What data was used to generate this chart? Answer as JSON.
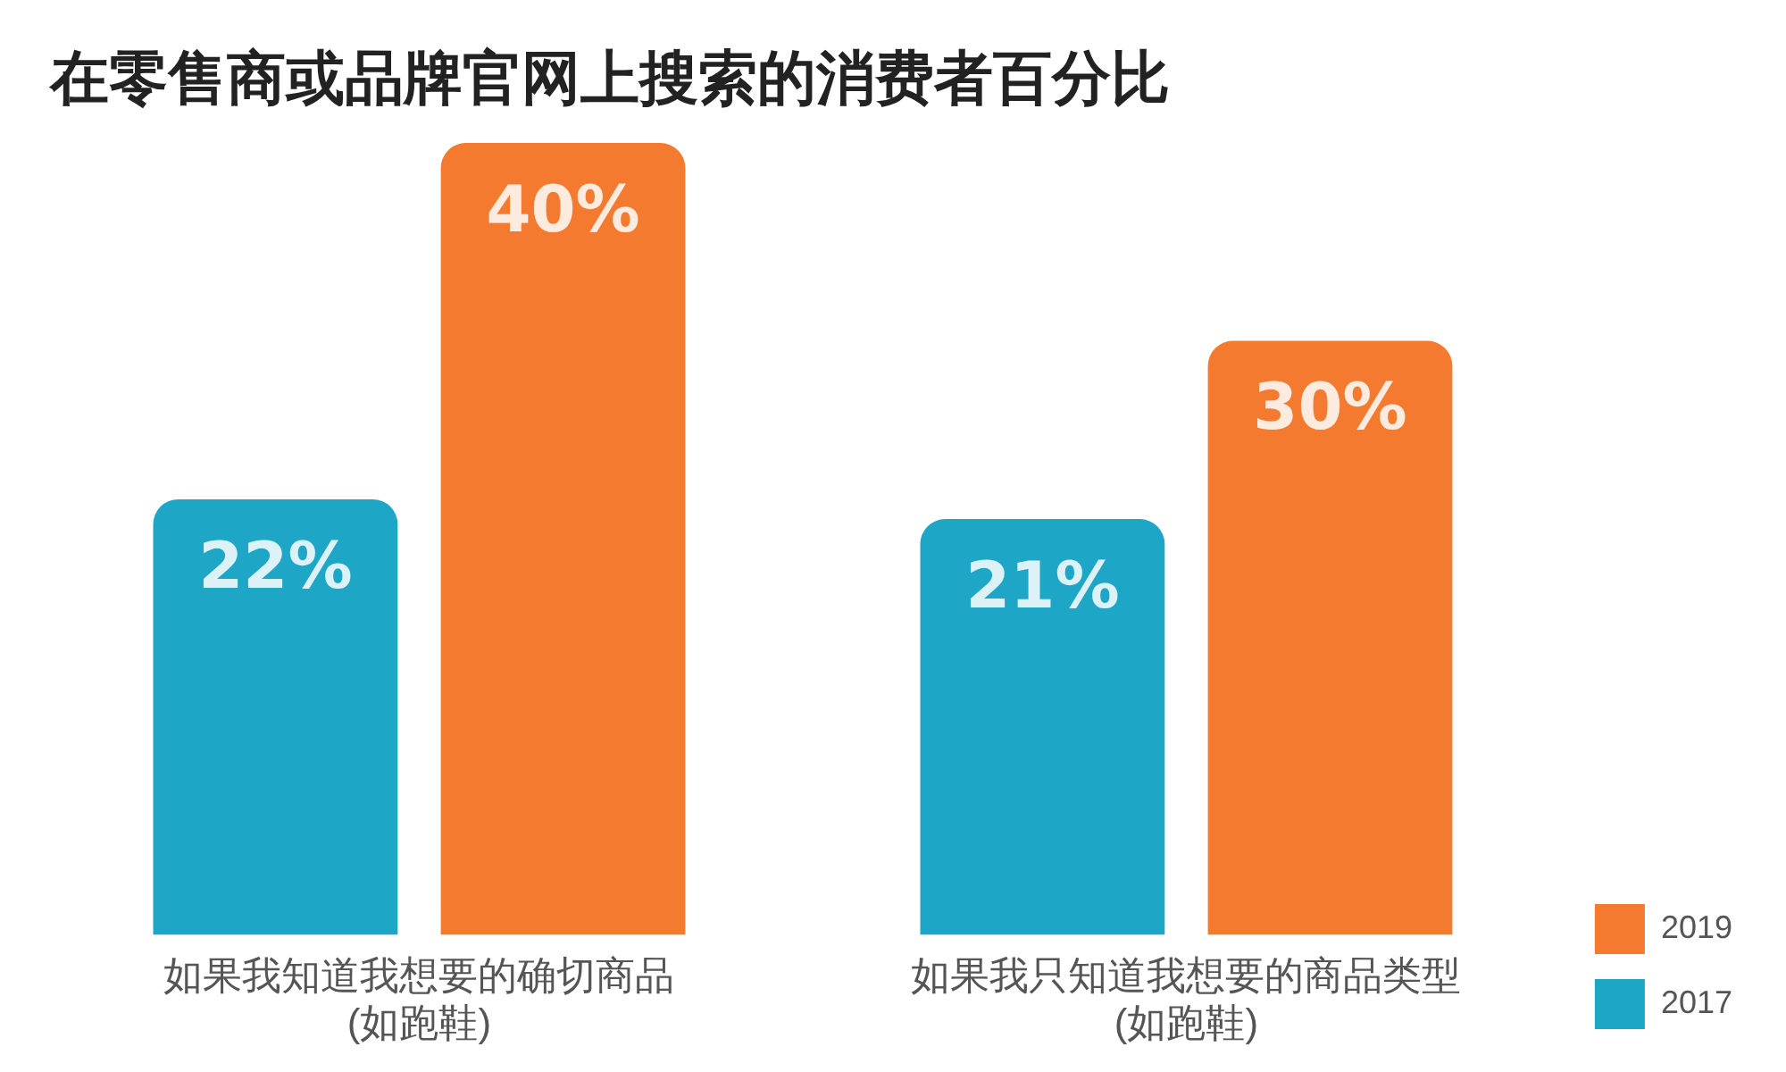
{
  "chart_data": {
    "type": "bar",
    "title": "在零售商或品牌官网上搜索的消费者百分比",
    "categories": [
      "如果我知道我想要的确切商品\n(如跑鞋)",
      "如果我只知道我想要的商品类型\n(如跑鞋)"
    ],
    "series": [
      {
        "name": "2017",
        "color": "#1ea6c6",
        "values": [
          22,
          21
        ],
        "value_labels": [
          "22%",
          "21%"
        ]
      },
      {
        "name": "2019",
        "color": "#f47a30",
        "values": [
          40,
          30
        ],
        "value_labels": [
          "40%",
          "30%"
        ]
      }
    ],
    "legend": "right",
    "grid": false
  }
}
